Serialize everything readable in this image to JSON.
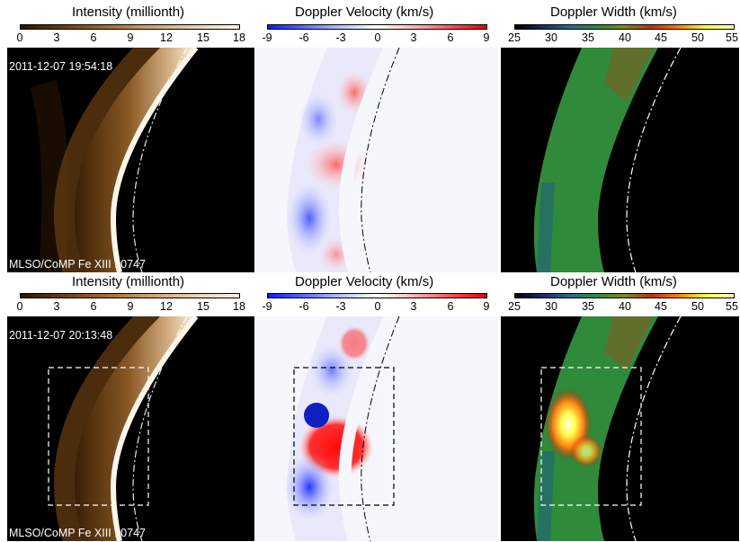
{
  "colorbars": [
    {
      "title": "Intensity (millionth)",
      "ticks": [
        "0",
        "3",
        "6",
        "9",
        "12",
        "15",
        "18"
      ]
    },
    {
      "title": "Doppler Velocity (km/s)",
      "ticks": [
        "-9",
        "-6",
        "-3",
        "0",
        "3",
        "6",
        "9"
      ]
    },
    {
      "title": "Doppler Width (km/s)",
      "ticks": [
        "25",
        "30",
        "35",
        "40",
        "45",
        "50",
        "55"
      ]
    }
  ],
  "rows": [
    {
      "timestamp": "2011-12-07 19:54:18",
      "instrument": "MLSO/CoMP Fe XIII 10747"
    },
    {
      "timestamp": "2011-12-07 20:13:48",
      "instrument": "MLSO/CoMP Fe XIII 10747"
    }
  ],
  "colors": {
    "intensity_low": "#3a1f05",
    "intensity_high": "#fff6ea",
    "velocity_neg": "#1030ff",
    "velocity_pos": "#ff1010",
    "width_green": "#2f8a3a",
    "width_hot": "#ffff60"
  }
}
